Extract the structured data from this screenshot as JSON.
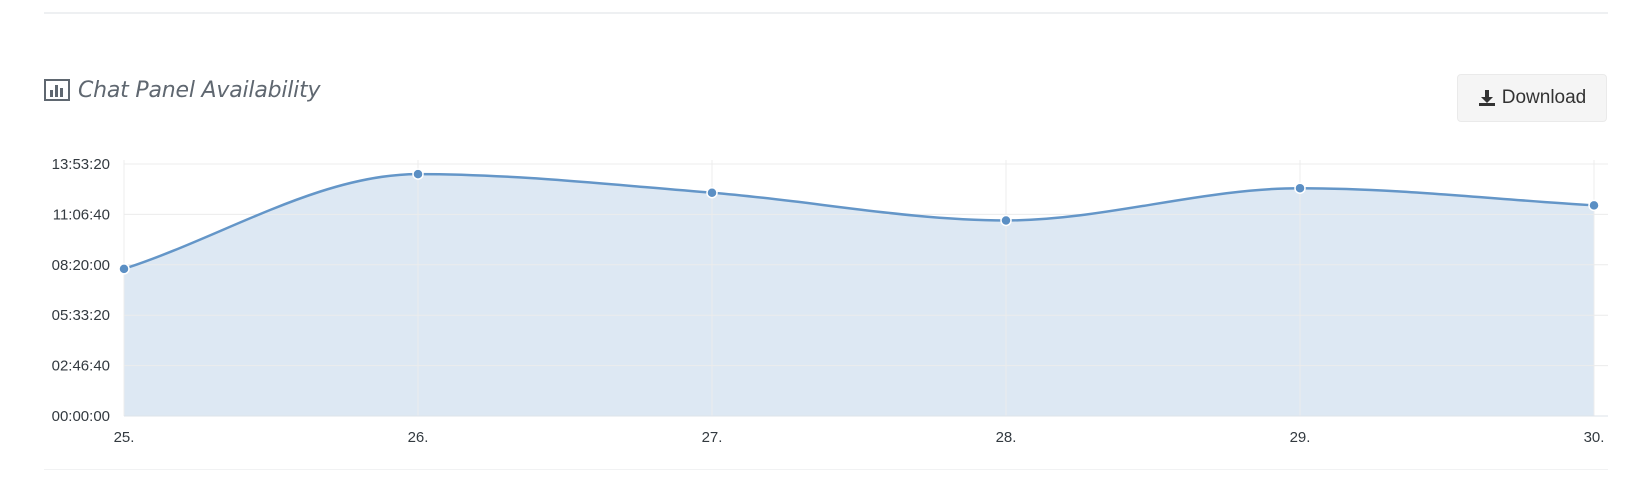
{
  "header": {
    "title": "Chat Panel Availability",
    "icon": "bar-chart-icon",
    "download_label": "Download",
    "download_icon": "download-icon"
  },
  "colors": {
    "line": "#6496c8",
    "area": "#dde8f3",
    "grid": "#ececec",
    "point": "#5b8fc4"
  },
  "chart_data": {
    "type": "area",
    "title": "",
    "xlabel": "",
    "ylabel": "",
    "categories": [
      "25.",
      "26.",
      "27.",
      "28.",
      "29.",
      "30."
    ],
    "y_tick_labels": [
      "00:00:00",
      "02:46:40",
      "05:33:20",
      "08:20:00",
      "11:06:40",
      "13:53:20"
    ],
    "y_tick_values": [
      0,
      10000,
      20000,
      30000,
      40000,
      50000
    ],
    "ylim": [
      0,
      50000
    ],
    "series": [
      {
        "values": [
          29200,
          48000,
          44300,
          38800,
          45200,
          41800
        ]
      }
    ],
    "grid": true,
    "smooth": true
  }
}
